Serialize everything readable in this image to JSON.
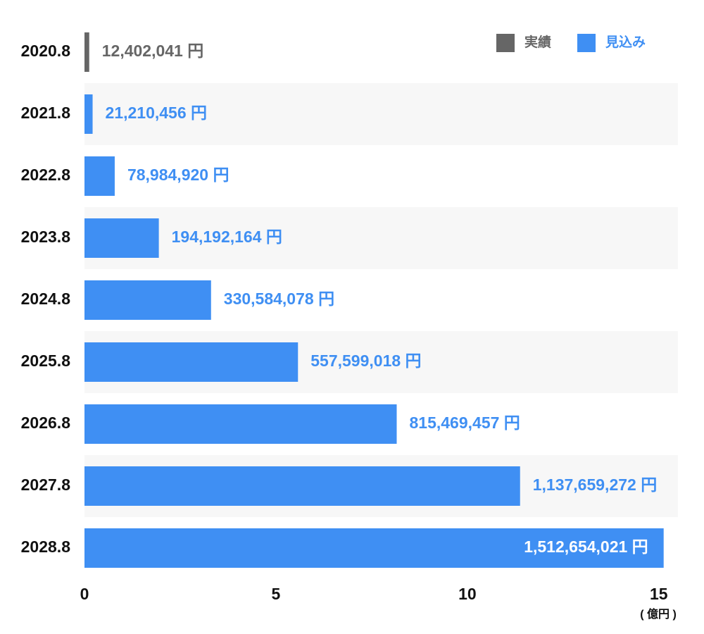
{
  "chart_data": {
    "type": "hbar",
    "categories": [
      "2020.8",
      "2021.8",
      "2022.8",
      "2023.8",
      "2024.8",
      "2025.8",
      "2026.8",
      "2027.8",
      "2028.8"
    ],
    "series": [
      {
        "name": "実績",
        "color": "#666666",
        "values": [
          0.12402041,
          null,
          null,
          null,
          null,
          null,
          null,
          null,
          null
        ],
        "value_labels": [
          "12,402,041 円",
          null,
          null,
          null,
          null,
          null,
          null,
          null,
          null
        ]
      },
      {
        "name": "見込み",
        "color": "#3f8ff3",
        "values": [
          null,
          0.21210456,
          0.7898492,
          1.94192164,
          3.30584078,
          5.57599018,
          8.15469457,
          11.37659272,
          15.12654021
        ],
        "value_labels": [
          null,
          "21,210,456 円",
          "78,984,920 円",
          "194,192,164 円",
          "330,584,078 円",
          "557,599,018 円",
          "815,469,457 円",
          "1,137,659,272 円",
          "1,512,654,021 円"
        ]
      }
    ],
    "xlim": [
      0,
      15.5
    ],
    "xticks": [
      0,
      5,
      10,
      15
    ],
    "x_unit_label": "( 億円 )"
  }
}
